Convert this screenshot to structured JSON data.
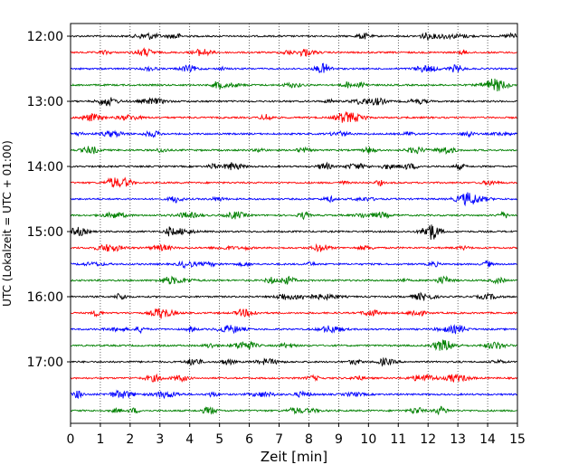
{
  "chart_data": {
    "type": "line",
    "title": "",
    "xlabel": "Zeit  [min]",
    "ylabel": "UTC (Lokalzeit = UTC + 01:00)",
    "xlim": [
      0,
      15
    ],
    "x_ticks": [
      "0",
      "1",
      "2",
      "3",
      "4",
      "5",
      "6",
      "7",
      "8",
      "9",
      "10",
      "11",
      "12",
      "13",
      "14",
      "15"
    ],
    "y_ticks": [
      "12:00",
      "13:00",
      "14:00",
      "15:00",
      "16:00",
      "17:00"
    ],
    "trace_interval_minutes": 15,
    "first_trace": "12:00",
    "last_trace": "17:45",
    "trace_colors": [
      "#000000",
      "#ff0000",
      "#0000ff",
      "#008000"
    ],
    "grid": "vertical dotted lines at each minute"
  }
}
